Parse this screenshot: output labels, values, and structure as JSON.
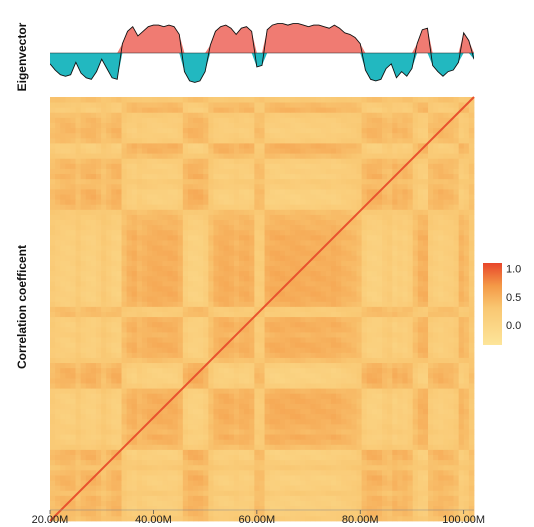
{
  "chart_data": [
    {
      "type": "area",
      "ylabel": "Eigenvector",
      "xlim": [
        20000000,
        102000000
      ],
      "ylim": [
        -1,
        1
      ],
      "colors": {
        "positive": "#f07b72",
        "negative": "#22b8c0"
      },
      "x": [
        20000000,
        21000000,
        22000000,
        23000000,
        24000000,
        25000000,
        26000000,
        27000000,
        28000000,
        29000000,
        30000000,
        31000000,
        32000000,
        33000000,
        34000000,
        35000000,
        36000000,
        37000000,
        38000000,
        39000000,
        40000000,
        41000000,
        42000000,
        43000000,
        44000000,
        45000000,
        46000000,
        47000000,
        48000000,
        49000000,
        50000000,
        51000000,
        52000000,
        53000000,
        54000000,
        55000000,
        56000000,
        57000000,
        58000000,
        59000000,
        60000000,
        61000000,
        62000000,
        63000000,
        64000000,
        65000000,
        66000000,
        67000000,
        68000000,
        69000000,
        70000000,
        71000000,
        72000000,
        73000000,
        74000000,
        75000000,
        76000000,
        77000000,
        78000000,
        79000000,
        80000000,
        81000000,
        82000000,
        83000000,
        84000000,
        85000000,
        86000000,
        87000000,
        88000000,
        89000000,
        90000000,
        91000000,
        92000000,
        93000000,
        94000000,
        95000000,
        96000000,
        97000000,
        98000000,
        99000000,
        100000000,
        101000000,
        102000000
      ],
      "values": [
        -0.35,
        -0.55,
        -0.7,
        -0.75,
        -0.7,
        -0.3,
        -0.65,
        -0.8,
        -0.85,
        -0.6,
        -0.2,
        -0.5,
        -0.8,
        -0.85,
        0.3,
        0.7,
        0.85,
        0.55,
        0.7,
        0.85,
        0.9,
        0.9,
        0.85,
        0.9,
        0.85,
        0.6,
        -0.6,
        -0.9,
        -0.95,
        -0.9,
        -0.6,
        0.25,
        0.7,
        0.85,
        0.9,
        0.8,
        0.6,
        0.8,
        0.85,
        0.7,
        -0.45,
        -0.4,
        0.75,
        0.9,
        0.95,
        0.95,
        0.9,
        0.95,
        0.95,
        0.9,
        0.85,
        0.9,
        0.9,
        0.85,
        0.8,
        0.9,
        0.8,
        0.65,
        0.6,
        0.5,
        0.3,
        -0.55,
        -0.85,
        -0.9,
        -0.85,
        -0.5,
        -0.35,
        -0.8,
        -0.6,
        -0.75,
        -0.5,
        0.3,
        0.75,
        0.8,
        -0.4,
        -0.6,
        -0.75,
        -0.6,
        -0.55,
        -0.3,
        0.65,
        0.4,
        -0.2
      ]
    },
    {
      "type": "heatmap",
      "ylabel": "Correlation coefficent",
      "xlim": [
        20000000,
        102000000
      ],
      "x_ticks": [
        "20.00M",
        "40.00M",
        "60.00M",
        "80.00M",
        "100.00M"
      ],
      "x_tick_values": [
        20000000,
        40000000,
        60000000,
        80000000,
        100000000
      ],
      "colorbar": {
        "ticks": [
          "1.0",
          "0.5",
          "0.0"
        ],
        "tick_values": [
          1.0,
          0.5,
          0.0
        ],
        "range": [
          -0.35,
          1.1
        ]
      },
      "colors": {
        "low": "#fde59a",
        "mid": "#f8b25a",
        "high": "#e8462a"
      },
      "description_hint": "bins follow the eigenvector compartments above; diagonal near 1.0"
    }
  ]
}
